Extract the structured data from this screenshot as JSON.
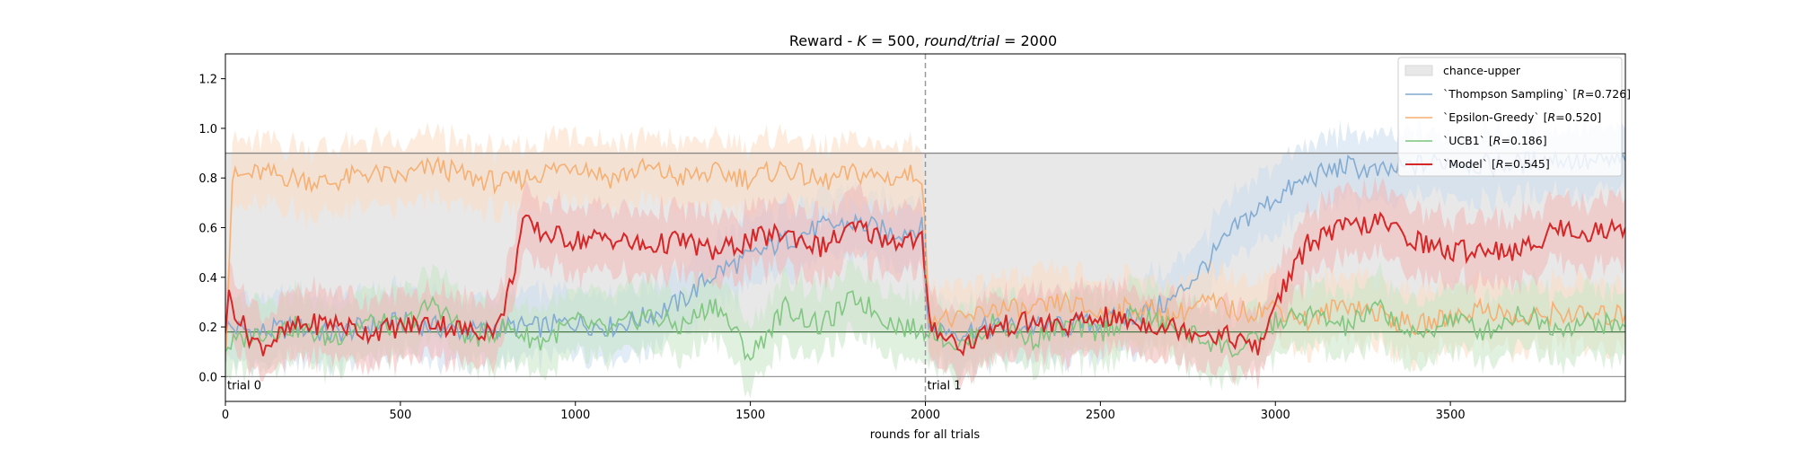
{
  "chart_data": {
    "type": "line",
    "title": "Reward - K = 500, round/trial = 2000",
    "title_parts": {
      "prefix": "Reward - ",
      "k_var": "K",
      "k_val": "500",
      "rt_var": "round/trial",
      "rt_val": "2000"
    },
    "xlabel": "rounds for all trials",
    "ylabel": "",
    "xlim": [
      0,
      4000
    ],
    "ylim": [
      -0.1,
      1.3
    ],
    "x_ticks": [
      0,
      500,
      1000,
      1500,
      2000,
      2500,
      3000,
      3500
    ],
    "x_tick_labels": [
      "0",
      "500",
      "1000",
      "1500",
      "2000",
      "2500",
      "3000",
      "3500"
    ],
    "y_ticks": [
      0.0,
      0.2,
      0.4,
      0.6,
      0.8,
      1.0,
      1.2
    ],
    "y_tick_labels": [
      "0.0",
      "0.2",
      "0.4",
      "0.6",
      "0.8",
      "1.0",
      "1.2"
    ],
    "grid": false,
    "legend_position": "top-right",
    "hlines": [
      {
        "y": 0.9,
        "color": "#888888"
      },
      {
        "y": 0.18,
        "color": "#4a7a4a"
      },
      {
        "y": 0.0,
        "color": "#999999"
      }
    ],
    "vlines": [
      {
        "x": 2000,
        "style": "dashed",
        "color": "#999999"
      }
    ],
    "annotations": [
      {
        "text": "trial 0",
        "x": 0,
        "y": 0.0
      },
      {
        "text": "trial 1",
        "x": 2000,
        "y": 0.0
      }
    ],
    "chance_band": {
      "name": "chance-upper",
      "color": "#e8e8e8",
      "segments": [
        {
          "x0": 0,
          "x1": 2000,
          "lower": 0.18,
          "upper": 0.9
        },
        {
          "x0": 2000,
          "x1": 4000,
          "lower": 0.18,
          "upper": 0.9
        }
      ]
    },
    "series": [
      {
        "name": "`Thompson Sampling` [R=0.726]",
        "legend_prefix": "`Thompson Sampling` [",
        "legend_var": "R",
        "legend_suffix": "=0.726]",
        "color": "#7fa9d1",
        "band_color": "#c9dcee",
        "x": [
          0,
          100,
          200,
          300,
          400,
          500,
          600,
          700,
          800,
          900,
          1000,
          1100,
          1200,
          1300,
          1400,
          1500,
          1600,
          1700,
          1800,
          1900,
          1990,
          2010,
          2100,
          2200,
          2300,
          2400,
          2500,
          2600,
          2700,
          2800,
          2900,
          3000,
          3100,
          3200,
          3300,
          3400,
          3500,
          3600,
          3700,
          3800,
          3900,
          4000
        ],
        "y": [
          0.2,
          0.18,
          0.2,
          0.17,
          0.2,
          0.22,
          0.2,
          0.18,
          0.2,
          0.2,
          0.22,
          0.2,
          0.24,
          0.3,
          0.42,
          0.48,
          0.55,
          0.6,
          0.62,
          0.58,
          0.6,
          0.2,
          0.18,
          0.2,
          0.2,
          0.2,
          0.22,
          0.25,
          0.3,
          0.45,
          0.62,
          0.72,
          0.8,
          0.85,
          0.82,
          0.85,
          0.87,
          0.85,
          0.86,
          0.88,
          0.86,
          0.87
        ]
      },
      {
        "name": "`Epsilon-Greedy` [R=0.520]",
        "legend_prefix": "`Epsilon-Greedy` [",
        "legend_var": "R",
        "legend_suffix": "=0.520]",
        "color": "#f5ad6f",
        "band_color": "#fcdcc2",
        "x": [
          0,
          20,
          100,
          200,
          300,
          400,
          500,
          600,
          700,
          800,
          900,
          1000,
          1100,
          1200,
          1300,
          1400,
          1500,
          1600,
          1700,
          1800,
          1900,
          1990,
          2010,
          2100,
          2200,
          2300,
          2400,
          2500,
          2600,
          2700,
          2800,
          2900,
          3000,
          3100,
          3200,
          3300,
          3400,
          3500,
          3600,
          3700,
          3800,
          3900,
          4000
        ],
        "y": [
          0.1,
          0.8,
          0.82,
          0.8,
          0.78,
          0.82,
          0.8,
          0.85,
          0.8,
          0.78,
          0.82,
          0.86,
          0.8,
          0.84,
          0.8,
          0.82,
          0.8,
          0.84,
          0.78,
          0.82,
          0.8,
          0.82,
          0.25,
          0.22,
          0.28,
          0.26,
          0.3,
          0.25,
          0.28,
          0.24,
          0.3,
          0.26,
          0.28,
          0.22,
          0.3,
          0.25,
          0.2,
          0.24,
          0.28,
          0.22,
          0.26,
          0.24,
          0.25
        ]
      },
      {
        "name": "`UCB1` [R=0.186]",
        "legend_prefix": "`UCB1` [",
        "legend_var": "R",
        "legend_suffix": "=0.186]",
        "color": "#7cc47c",
        "band_color": "#c6e6c6",
        "x": [
          0,
          100,
          200,
          300,
          400,
          500,
          600,
          700,
          800,
          900,
          1000,
          1100,
          1200,
          1300,
          1400,
          1500,
          1600,
          1700,
          1800,
          1900,
          1990,
          2010,
          2100,
          2200,
          2300,
          2400,
          2500,
          2600,
          2700,
          2800,
          2900,
          3000,
          3100,
          3200,
          3300,
          3400,
          3500,
          3600,
          3700,
          3800,
          3900,
          4000
        ],
        "y": [
          0.12,
          0.18,
          0.2,
          0.15,
          0.22,
          0.2,
          0.3,
          0.15,
          0.2,
          0.14,
          0.22,
          0.18,
          0.25,
          0.2,
          0.3,
          0.08,
          0.28,
          0.2,
          0.32,
          0.22,
          0.18,
          0.2,
          0.12,
          0.22,
          0.15,
          0.2,
          0.18,
          0.25,
          0.2,
          0.15,
          0.1,
          0.22,
          0.25,
          0.2,
          0.28,
          0.15,
          0.24,
          0.18,
          0.26,
          0.2,
          0.22,
          0.2
        ]
      },
      {
        "name": "`Model` [R=0.545]",
        "legend_prefix": "`Model` [",
        "legend_var": "R",
        "legend_suffix": "=0.545]",
        "color": "#d62728",
        "band_color": "#f2b7b7",
        "x": [
          0,
          10,
          60,
          100,
          200,
          300,
          400,
          500,
          600,
          700,
          780,
          820,
          850,
          900,
          1000,
          1100,
          1200,
          1300,
          1400,
          1500,
          1600,
          1700,
          1800,
          1900,
          1990,
          2010,
          2100,
          2200,
          2300,
          2400,
          2500,
          2600,
          2700,
          2800,
          2900,
          2950,
          3000,
          3100,
          3200,
          3300,
          3400,
          3500,
          3600,
          3700,
          3800,
          3900,
          4000
        ],
        "y": [
          0.2,
          0.32,
          0.18,
          0.12,
          0.2,
          0.22,
          0.18,
          0.2,
          0.22,
          0.18,
          0.2,
          0.4,
          0.62,
          0.58,
          0.55,
          0.56,
          0.52,
          0.55,
          0.5,
          0.55,
          0.58,
          0.52,
          0.6,
          0.55,
          0.55,
          0.22,
          0.12,
          0.2,
          0.22,
          0.2,
          0.24,
          0.22,
          0.2,
          0.18,
          0.15,
          0.1,
          0.3,
          0.55,
          0.6,
          0.62,
          0.55,
          0.5,
          0.52,
          0.5,
          0.6,
          0.58,
          0.6
        ]
      }
    ]
  }
}
